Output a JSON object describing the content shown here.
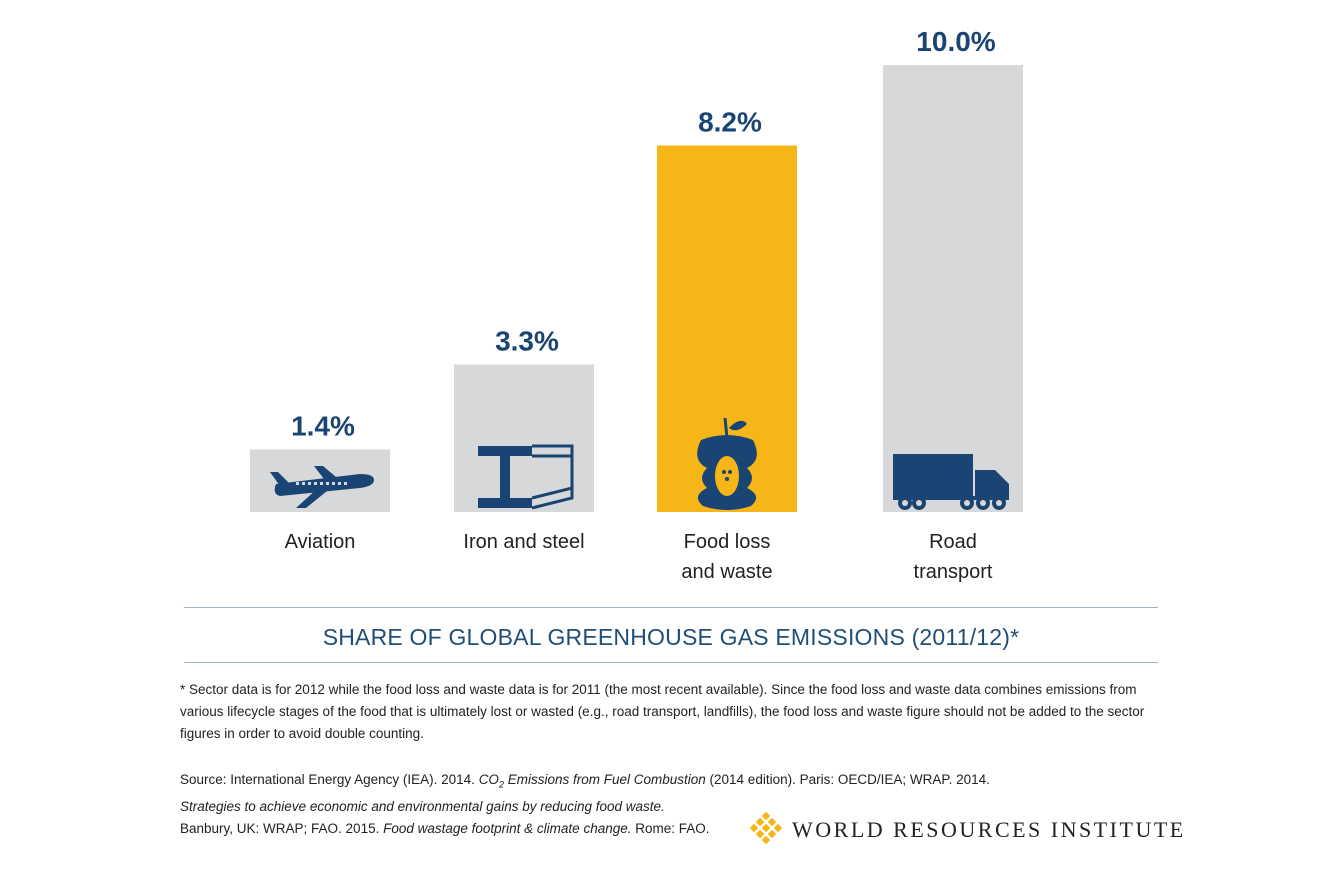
{
  "chart_data": {
    "type": "bar",
    "categories": [
      "Aviation",
      "Iron and steel",
      "Food loss\nand waste",
      "Road\ntransport"
    ],
    "values": [
      1.4,
      3.3,
      8.2,
      10.0
    ],
    "value_labels": [
      "1.4%",
      "3.3%",
      "8.2%",
      "10.0%"
    ],
    "bar_colors": [
      "#d7d8da",
      "#d7d8da",
      "#f7b617",
      "#d7d8da"
    ],
    "icons": [
      "airplane-icon",
      "steel-beam-icon",
      "apple-core-icon",
      "truck-icon"
    ],
    "title": "SHARE OF GLOBAL GREENHOUSE GAS EMISSIONS (2011/12)*",
    "xlabel": "",
    "ylabel": "",
    "ylim": [
      0,
      10
    ],
    "grid": false
  },
  "footnote": "* Sector data is for 2012 while the food loss and waste data is for 2011 (the most recent available). Since the food loss and waste data combines emissions from various lifecycle stages of the food that is ultimately lost or wasted (e.g., road transport, landfills), the food loss and waste figure should not be added to the sector figures in order to avoid double counting.",
  "source": {
    "line1_prefix": "Source:  International Energy Agency (IEA). 2014. ",
    "line1_co": "CO",
    "line1_sub": "2",
    "line1_italic": " Emissions from Fuel Combustion",
    "line1_suffix": " (2014 edition). Paris: OECD/IEA; WRAP. 2014.",
    "line2_italic": "Strategies to achieve economic and environmental gains by reducing food waste.",
    "line3_prefix": "Banbury, UK: WRAP; FAO. 2015. ",
    "line3_italic": "Food wastage footprint & climate change.",
    "line3_suffix": " Rome: FAO."
  },
  "logo": {
    "text": "WORLD RESOURCES INSTITUTE",
    "color": "#f7b617"
  },
  "colors": {
    "accent": "#1a4473",
    "gray_bar": "#d7d8da",
    "highlight_bar": "#f7b617"
  }
}
